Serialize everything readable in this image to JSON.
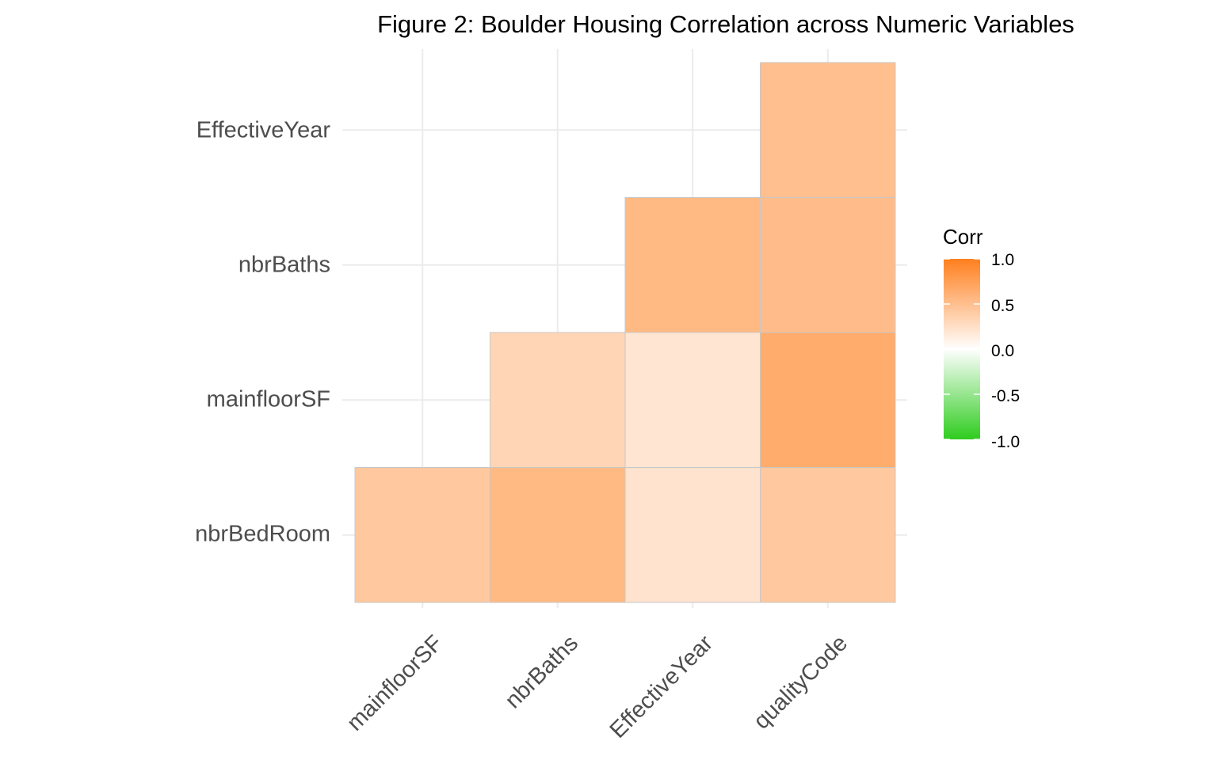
{
  "chart_data": {
    "type": "heatmap",
    "title": "Figure 2: Boulder Housing Correlation across Numeric Variables",
    "x_categories": [
      "mainfloorSF",
      "nbrBaths",
      "EffectiveYear",
      "qualityCode"
    ],
    "y_categories": [
      "nbrBedRoom",
      "mainfloorSF",
      "nbrBaths",
      "EffectiveYear"
    ],
    "cells": [
      {
        "x": "mainfloorSF",
        "y": "nbrBedRoom",
        "value": 0.43
      },
      {
        "x": "nbrBaths",
        "y": "nbrBedRoom",
        "value": 0.55
      },
      {
        "x": "EffectiveYear",
        "y": "nbrBedRoom",
        "value": 0.22
      },
      {
        "x": "qualityCode",
        "y": "nbrBedRoom",
        "value": 0.43
      },
      {
        "x": "nbrBaths",
        "y": "mainfloorSF",
        "value": 0.33
      },
      {
        "x": "EffectiveYear",
        "y": "mainfloorSF",
        "value": 0.2
      },
      {
        "x": "qualityCode",
        "y": "mainfloorSF",
        "value": 0.65
      },
      {
        "x": "EffectiveYear",
        "y": "nbrBaths",
        "value": 0.55
      },
      {
        "x": "qualityCode",
        "y": "nbrBaths",
        "value": 0.52
      },
      {
        "x": "qualityCode",
        "y": "EffectiveYear",
        "value": 0.5
      }
    ],
    "legend": {
      "title": "Corr",
      "ticks": [
        "1.0",
        "0.5",
        "0.0",
        "-0.5",
        "-1.0"
      ],
      "limits": [
        -1,
        1
      ]
    },
    "colors": {
      "high": "#ff7f1e",
      "mid": "#ffffff",
      "low": "#2ecc1e",
      "tile_border": "#c8c8c8",
      "grid": "#ebebeb"
    }
  }
}
